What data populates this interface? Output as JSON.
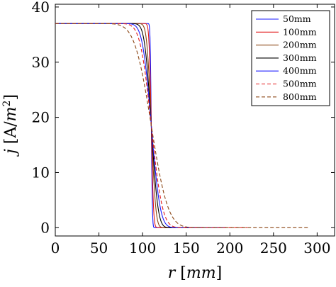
{
  "chart_data": {
    "type": "line",
    "xlabel": "r [mm]",
    "ylabel": "j [A/m²]",
    "xlim": [
      0,
      320
    ],
    "ylim": [
      -1.5,
      40.5
    ],
    "xticks": [
      "0",
      "50",
      "100",
      "150",
      "200",
      "250",
      "300"
    ],
    "yticks": [
      "0",
      "10",
      "20",
      "30",
      "40"
    ],
    "legend_position": "top-right",
    "series": [
      {
        "name": "50mm",
        "color": "#1a1aff",
        "dash": "solid",
        "ra": 110,
        "w": 1.0,
        "x": [
          0,
          100,
          104,
          106,
          108,
          109,
          110,
          111,
          112,
          114,
          116,
          120,
          130
        ],
        "y": [
          37.0,
          36.99,
          36.9,
          36.6,
          34.5,
          28.0,
          18.5,
          8.5,
          2.5,
          0.3,
          0.05,
          0,
          0
        ]
      },
      {
        "name": "100mm",
        "color": "#e31a1c",
        "dash": "solid",
        "ra": 110,
        "w": 2.0,
        "x": [
          0,
          90,
          98,
          102,
          106,
          108,
          110,
          112,
          114,
          118,
          122,
          126,
          135
        ],
        "y": [
          37.0,
          36.9,
          36.6,
          35.8,
          31.5,
          25.0,
          17.0,
          9.5,
          4.5,
          1.0,
          0.2,
          0,
          0
        ]
      },
      {
        "name": "200mm",
        "color": "#8b4513",
        "dash": "solid",
        "ra": 110,
        "w": 4.0,
        "x": [
          0,
          80,
          90,
          98,
          104,
          108,
          110,
          112,
          116,
          122,
          130,
          140,
          150
        ],
        "y": [
          37.0,
          36.7,
          35.8,
          32.5,
          25.5,
          19.5,
          16.5,
          13.5,
          8.5,
          3.5,
          1.0,
          0.1,
          0
        ]
      },
      {
        "name": "300mm",
        "color": "#000000",
        "dash": "solid",
        "ra": 110,
        "w": 6.0,
        "x": [
          0,
          60,
          75,
          90,
          100,
          110,
          120,
          130,
          140,
          150,
          160,
          170
        ],
        "y": [
          37.0,
          36.5,
          35.3,
          31.5,
          25.0,
          15.5,
          7.0,
          2.5,
          0.8,
          0.2,
          0.05,
          0
        ]
      },
      {
        "name": "400mm",
        "color": "#1a1aff",
        "dash": "solid",
        "ra": 110,
        "w": 8.0,
        "x": [
          0,
          50,
          70,
          85,
          100,
          110,
          120,
          135,
          150,
          165,
          180,
          195
        ],
        "y": [
          37.0,
          36.2,
          34.3,
          30.5,
          22.5,
          15.5,
          9.0,
          3.5,
          1.2,
          0.3,
          0.05,
          0
        ]
      },
      {
        "name": "500mm",
        "color": "#e31a1c",
        "dash": "dashed",
        "ra": 110,
        "w": 10.0,
        "x": [
          0,
          40,
          60,
          80,
          95,
          110,
          125,
          140,
          160,
          180,
          200,
          220
        ],
        "y": [
          37.0,
          36.2,
          34.2,
          29.5,
          24.0,
          16.0,
          9.5,
          5.0,
          1.8,
          0.5,
          0.1,
          0
        ]
      },
      {
        "name": "800mm",
        "color": "#8b4513",
        "dash": "dashed",
        "ra": 110,
        "w": 15.0,
        "x": [
          0,
          25,
          50,
          75,
          100,
          110,
          125,
          150,
          175,
          200,
          225,
          250,
          290
        ],
        "y": [
          34.2,
          33.2,
          30.0,
          24.5,
          18.5,
          15.5,
          12.0,
          7.2,
          3.5,
          1.4,
          0.5,
          0.15,
          0
        ]
      }
    ]
  }
}
